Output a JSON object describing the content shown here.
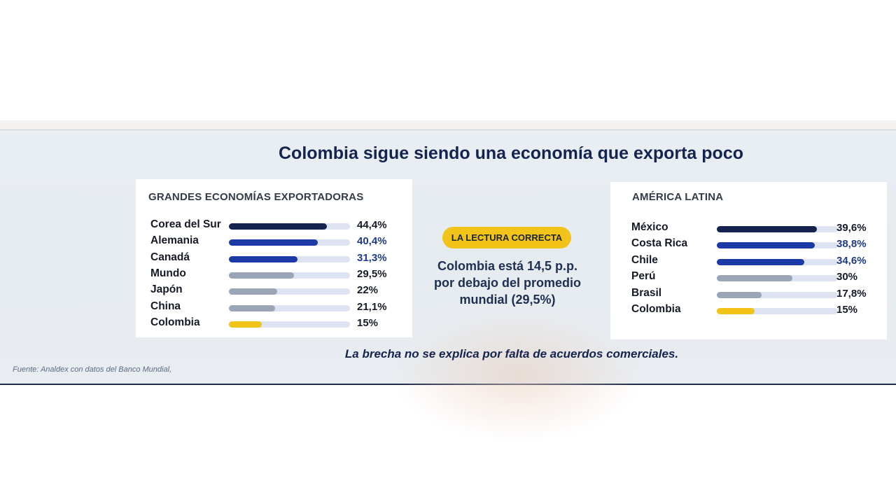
{
  "title": "Colombia sigue siendo una economía que exporta poco",
  "colors": {
    "navy": "#14234f",
    "blue": "#1b3aa6",
    "gray": "#9aa5b8",
    "yellow": "#f2c318",
    "track": "#dde3f1",
    "value_blue": "#1f3a8a",
    "value_dark": "#151a26"
  },
  "badge": "LA LECTURA CORRECTA",
  "center_text": "Colombia está 14,5 p.p.\npor debajo del promedio\nmundial (29,5%)",
  "footnote": "La brecha no se explica por falta de acuerdos comerciales.",
  "source": "Fuente: Analdex con datos del Banco Mundial,",
  "chart_data": [
    {
      "type": "bar",
      "orientation": "horizontal",
      "title": "GRANDES ECONOMÍAS EXPORTADORAS",
      "xlim": [
        0,
        55
      ],
      "categories": [
        "Corea del Sur",
        "Alemania",
        "Canadá",
        "Mundo",
        "Japón",
        "China",
        "Colombia"
      ],
      "values": [
        44.4,
        40.4,
        31.3,
        29.5,
        22,
        21.1,
        15
      ],
      "value_labels": [
        "44,4%",
        "40,4%",
        "31,3%",
        "29,5%",
        "22%",
        "21,1%",
        "15%"
      ],
      "bar_colors": [
        "navy",
        "blue",
        "blue",
        "gray",
        "gray",
        "gray",
        "yellow"
      ],
      "label_colors": [
        "value_dark",
        "value_blue",
        "value_blue",
        "value_dark",
        "value_dark",
        "value_dark",
        "value_dark"
      ]
    },
    {
      "type": "bar",
      "orientation": "horizontal",
      "title": "AMÉRICA LATINA",
      "xlim": [
        0,
        48
      ],
      "categories": [
        "México",
        "Costa Rica",
        "Chile",
        "Perú",
        "Brasil",
        "Colombia"
      ],
      "values": [
        39.6,
        38.8,
        34.6,
        30,
        17.8,
        15
      ],
      "value_labels": [
        "39,6%",
        "38,8%",
        "34,6%",
        "30%",
        "17,8%",
        "15%"
      ],
      "bar_colors": [
        "navy",
        "blue",
        "blue",
        "gray",
        "gray",
        "yellow"
      ],
      "label_colors": [
        "value_dark",
        "value_blue",
        "value_blue",
        "value_dark",
        "value_dark",
        "value_dark"
      ]
    }
  ]
}
